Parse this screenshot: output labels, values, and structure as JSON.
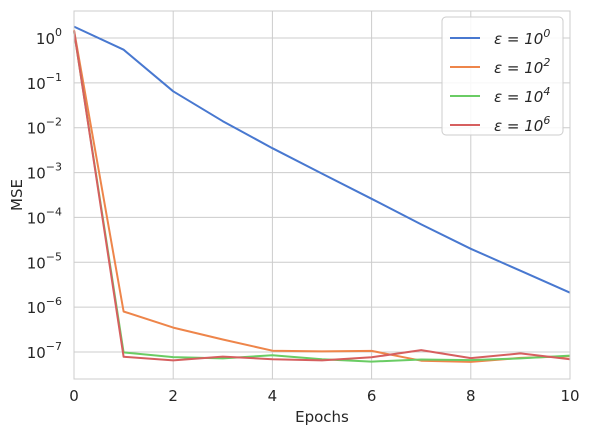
{
  "chart_data": {
    "type": "line",
    "xlabel": "Epochs",
    "ylabel": "MSE",
    "xlim": [
      0,
      10
    ],
    "ylim": [
      2.5e-08,
      4.0
    ],
    "y_scale": "log",
    "x_ticks": [
      0,
      2,
      4,
      6,
      8,
      10
    ],
    "x_tick_labels": [
      "0",
      "2",
      "4",
      "6",
      "8",
      "10"
    ],
    "y_ticks": [
      1e-07,
      1e-06,
      1e-05,
      0.0001,
      0.001,
      0.01,
      0.1,
      1
    ],
    "y_tick_labels": [
      {
        "base": "10",
        "exp": "−7"
      },
      {
        "base": "10",
        "exp": "−6"
      },
      {
        "base": "10",
        "exp": "−5"
      },
      {
        "base": "10",
        "exp": "−4"
      },
      {
        "base": "10",
        "exp": "−3"
      },
      {
        "base": "10",
        "exp": "−2"
      },
      {
        "base": "10",
        "exp": "−1"
      },
      {
        "base": "10",
        "exp": "0"
      }
    ],
    "grid": true,
    "legend_position": "upper right",
    "x": [
      0,
      1,
      2,
      3,
      4,
      5,
      6,
      7,
      8,
      9,
      10
    ],
    "series": [
      {
        "name": "ε = 10^0",
        "label_base": "ε = 10",
        "label_exp": "0",
        "color": "#4878d0",
        "values": [
          1.8,
          0.55,
          0.065,
          0.014,
          0.0035,
          0.00095,
          0.00026,
          7e-05,
          2e-05,
          6.5e-06,
          2.1e-06
        ]
      },
      {
        "name": "ε = 10^2",
        "label_base": "ε = 10",
        "label_exp": "2",
        "color": "#ee854a",
        "values": [
          1.5,
          8e-07,
          3.5e-07,
          1.9e-07,
          1.07e-07,
          1.03e-07,
          1.06e-07,
          6.4e-08,
          6e-08,
          7.4e-08,
          8e-08
        ]
      },
      {
        "name": "ε = 10^4",
        "label_base": "ε = 10",
        "label_exp": "4",
        "color": "#6acc64",
        "values": [
          1.4,
          9.8e-08,
          7.7e-08,
          7.2e-08,
          8.5e-08,
          6.9e-08,
          6.1e-08,
          6.8e-08,
          6.6e-08,
          7.2e-08,
          8.3e-08
        ]
      },
      {
        "name": "ε = 10^6",
        "label_base": "ε = 10",
        "label_exp": "6",
        "color": "#d65f5f",
        "values": [
          1.45,
          7.8e-08,
          6.5e-08,
          7.9e-08,
          6.9e-08,
          6.5e-08,
          7.6e-08,
          1.1e-07,
          7.3e-08,
          9.3e-08,
          6.9e-08
        ]
      }
    ]
  }
}
